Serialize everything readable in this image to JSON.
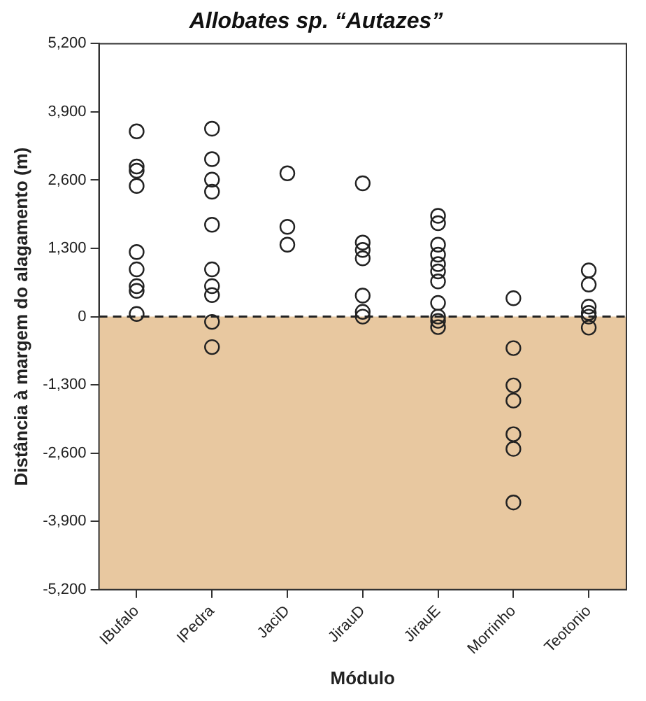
{
  "chart_data": {
    "type": "scatter",
    "title": "Allobates sp. “Autazes”",
    "xlabel": "Módulo",
    "ylabel": "Distância à margem do alagamento (m)",
    "categories": [
      "IBufalo",
      "IPedra",
      "JaciD",
      "JirauD",
      "JirauE",
      "Morrinho",
      "Teotonio"
    ],
    "series": [
      {
        "color": "#222222",
        "x": [
          "IBufalo",
          "IBufalo",
          "IBufalo",
          "IBufalo",
          "IBufalo",
          "IBufalo",
          "IBufalo",
          "IBufalo",
          "IBufalo",
          "IPedra",
          "IPedra",
          "IPedra",
          "IPedra",
          "IPedra",
          "IPedra",
          "IPedra",
          "IPedra",
          "IPedra",
          "IPedra",
          "JaciD",
          "JaciD",
          "JaciD",
          "JirauD",
          "JirauD",
          "JirauD",
          "JirauD",
          "JirauD",
          "JirauD",
          "JirauD",
          "JirauE",
          "JirauE",
          "JirauE",
          "JirauE",
          "JirauE",
          "JirauE",
          "JirauE",
          "JirauE",
          "JirauE",
          "JirauE",
          "JirauE",
          "Morrinho",
          "Morrinho",
          "Morrinho",
          "Morrinho",
          "Morrinho",
          "Morrinho",
          "Morrinho",
          "Teotonio",
          "Teotonio",
          "Teotonio",
          "Teotonio",
          "Teotonio",
          "Teotonio"
        ],
        "values": [
          3530,
          2860,
          2780,
          2490,
          1230,
          900,
          580,
          490,
          50,
          3580,
          3000,
          2610,
          2380,
          1750,
          900,
          580,
          410,
          -100,
          -580,
          2730,
          1710,
          1370,
          2540,
          1410,
          1270,
          1110,
          400,
          90,
          0,
          1920,
          1780,
          1370,
          1180,
          1000,
          860,
          670,
          260,
          0,
          -80,
          -200,
          350,
          -600,
          -1310,
          -1600,
          -2240,
          -2520,
          -3540,
          880,
          610,
          190,
          70,
          0,
          -210
        ]
      }
    ],
    "ylim": [
      -5200,
      5200
    ],
    "yticks": [
      {
        "value": -5200,
        "label": "-5,200"
      },
      {
        "value": -3900,
        "label": "-3,900"
      },
      {
        "value": -2600,
        "label": "-2,600"
      },
      {
        "value": -1300,
        "label": "-1,300"
      },
      0,
      {
        "value": 1300,
        "label": "1,300"
      },
      {
        "value": 2600,
        "label": "2,600"
      },
      {
        "value": 3900,
        "label": "3,900"
      },
      {
        "value": 5200,
        "label": "5,200"
      }
    ],
    "bands": [
      {
        "axis": "y",
        "from": -5200,
        "to": 0,
        "color": "#e8c8a0"
      }
    ],
    "ref_lines": [
      {
        "axis": "y",
        "value": 0,
        "color": "#222222",
        "line_style": "dashed"
      }
    ],
    "marker": "circle",
    "grid": false,
    "legend": false
  }
}
